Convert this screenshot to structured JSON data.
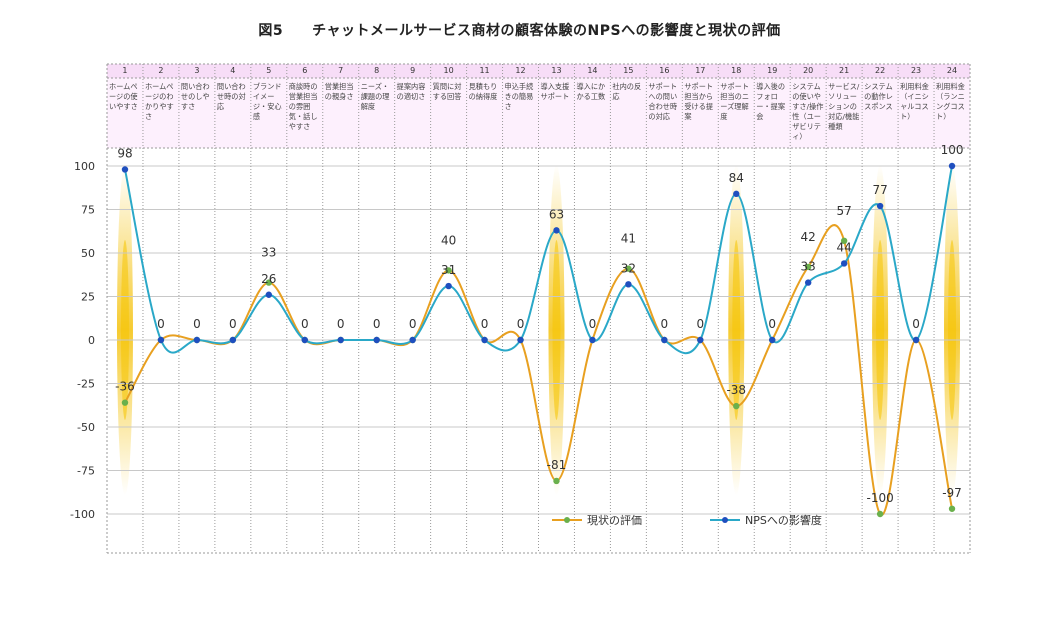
{
  "chart_data": {
    "type": "line",
    "title": "図5　　チャットメールサービス商材の顧客体験のNPSへの影響度と現状の評価",
    "xlabel": "",
    "ylabel": "",
    "ylim": [
      -100,
      100
    ],
    "yticks": [
      100,
      75,
      50,
      25,
      0,
      -25,
      -50,
      -75,
      -100
    ],
    "grid": true,
    "legend_position": "bottom-right",
    "categories": [
      {
        "no": "1",
        "label": "ホームページの使いやすさ"
      },
      {
        "no": "2",
        "label": "ホームページのわかりやすさ"
      },
      {
        "no": "3",
        "label": "問い合わせのしやすさ"
      },
      {
        "no": "4",
        "label": "問い合わせ時の対応"
      },
      {
        "no": "5",
        "label": "ブランドイメージ・安心感"
      },
      {
        "no": "6",
        "label": "商談時の営業担当の雰囲気・話しやすさ"
      },
      {
        "no": "7",
        "label": "営業担当の親身さ"
      },
      {
        "no": "8",
        "label": "ニーズ・課題の理解度"
      },
      {
        "no": "9",
        "label": "提案内容の適切さ"
      },
      {
        "no": "10",
        "label": "質問に対する回答"
      },
      {
        "no": "11",
        "label": "見積もりの納得度"
      },
      {
        "no": "12",
        "label": "申込手続きの簡易さ"
      },
      {
        "no": "13",
        "label": "導入支援サポート"
      },
      {
        "no": "14",
        "label": "導入にかかる工数"
      },
      {
        "no": "15",
        "label": "社内の反応"
      },
      {
        "no": "16",
        "label": "サポートへの問い合わせ時の対応"
      },
      {
        "no": "17",
        "label": "サポート担当から受ける提案"
      },
      {
        "no": "18",
        "label": "サポート担当のニーズ理解度"
      },
      {
        "no": "19",
        "label": "導入後のフォロー・提案会"
      },
      {
        "no": "20",
        "label": "システムの使いやすさ/操作性（ユーザビリティ）"
      },
      {
        "no": "21",
        "label": "サービス/ソリューションの対応/機能種類"
      },
      {
        "no": "22",
        "label": "システムの動作レスポンス"
      },
      {
        "no": "23",
        "label": "利用料金（イニシャルコスト）"
      },
      {
        "no": "24",
        "label": "利用料金（ランニングコスト）"
      }
    ],
    "series": [
      {
        "name": "現状の評価",
        "color": "#e8a020",
        "marker_color": "#6ab04c",
        "values": [
          -36,
          0,
          0,
          0,
          33,
          0,
          0,
          0,
          0,
          40,
          0,
          0,
          -81,
          0,
          41,
          0,
          0,
          -38,
          0,
          42,
          57,
          -100,
          0,
          -97
        ],
        "labels": [
          "-36",
          "",
          "",
          "",
          "33",
          "",
          "",
          "",
          "",
          "40",
          "",
          "",
          "-81",
          "",
          "41",
          "",
          "",
          "-38",
          "",
          "42",
          "57",
          "-100",
          "",
          "-97"
        ]
      },
      {
        "name": "NPSへの影響度",
        "color": "#2aa8c8",
        "marker_color": "#1f4fbf",
        "values": [
          98,
          0,
          0,
          0,
          26,
          0,
          0,
          0,
          0,
          31,
          0,
          0,
          63,
          0,
          32,
          0,
          0,
          84,
          0,
          33,
          44,
          77,
          0,
          100
        ],
        "labels": [
          "98",
          "0",
          "0",
          "0",
          "26",
          "0",
          "0",
          "0",
          "0",
          "31",
          "0",
          "0",
          "63",
          "0",
          "32",
          "0",
          "0",
          "84",
          "0",
          "33",
          "44",
          "77",
          "0",
          "100"
        ]
      }
    ],
    "highlight_columns": [
      1,
      13,
      18,
      22,
      24
    ],
    "highlight_color": "#f4c20d"
  }
}
